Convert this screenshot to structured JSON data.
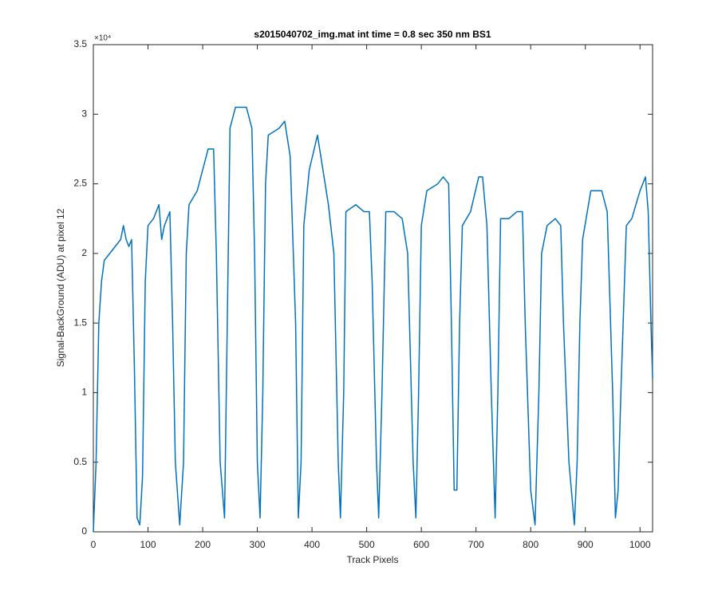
{
  "chart_data": {
    "type": "line",
    "title": "s2015040702_img.mat int time = 0.8 sec  350 nm BS1",
    "xlabel": "Track Pixels",
    "ylabel": "Signal-BackGround (ADU) at pixel 12",
    "y_exponent_label": "×10⁴",
    "xlim": [
      0,
      1023
    ],
    "xticks": [
      0,
      100,
      200,
      300,
      400,
      500,
      600,
      700,
      800,
      900,
      1000
    ],
    "ylim": [
      0,
      3.5
    ],
    "yticks": [
      0,
      0.5,
      1,
      1.5,
      2,
      2.5,
      3,
      3.5
    ],
    "series": [
      {
        "color": "#0072bd",
        "x": [
          0,
          5,
          10,
          15,
          20,
          30,
          40,
          50,
          55,
          60,
          65,
          70,
          75,
          80,
          85,
          90,
          95,
          100,
          110,
          120,
          125,
          130,
          140,
          145,
          150,
          158,
          165,
          170,
          175,
          190,
          200,
          210,
          220,
          225,
          232,
          240,
          245,
          250,
          260,
          280,
          290,
          295,
          300,
          305,
          310,
          315,
          320,
          340,
          350,
          360,
          370,
          375,
          380,
          385,
          395,
          410,
          420,
          430,
          440,
          448,
          452,
          458,
          462,
          480,
          495,
          505,
          510,
          518,
          522,
          528,
          535,
          550,
          565,
          575,
          585,
          590,
          595,
          600,
          610,
          630,
          640,
          650,
          655,
          660,
          665,
          670,
          675,
          690,
          705,
          712,
          720,
          728,
          735,
          740,
          745,
          760,
          775,
          785,
          790,
          800,
          808,
          815,
          820,
          830,
          845,
          855,
          860,
          870,
          880,
          885,
          890,
          895,
          910,
          930,
          940,
          950,
          955,
          960,
          965,
          975,
          985,
          1000,
          1010,
          1015,
          1020,
          1023
        ],
        "values": [
          0,
          0.5,
          1.5,
          1.8,
          1.95,
          2.0,
          2.05,
          2.1,
          2.2,
          2.1,
          2.05,
          2.1,
          1.2,
          0.1,
          0.05,
          0.4,
          1.8,
          2.2,
          2.25,
          2.35,
          2.1,
          2.2,
          2.3,
          1.5,
          0.5,
          0.05,
          0.5,
          2.0,
          2.35,
          2.45,
          2.6,
          2.75,
          2.75,
          2.0,
          0.5,
          0.1,
          1.5,
          2.9,
          3.05,
          3.05,
          2.9,
          2.0,
          0.5,
          0.1,
          1.0,
          2.5,
          2.85,
          2.9,
          2.95,
          2.7,
          1.5,
          0.1,
          0.5,
          2.2,
          2.6,
          2.85,
          2.6,
          2.35,
          2.0,
          0.5,
          0.1,
          1.0,
          2.3,
          2.35,
          2.3,
          2.3,
          1.8,
          0.5,
          0.1,
          1.0,
          2.3,
          2.3,
          2.25,
          2.0,
          0.5,
          0.1,
          1.0,
          2.2,
          2.45,
          2.5,
          2.55,
          2.5,
          1.5,
          0.3,
          0.3,
          1.5,
          2.2,
          2.3,
          2.55,
          2.55,
          2.2,
          1.0,
          0.1,
          1.0,
          2.25,
          2.25,
          2.3,
          2.3,
          1.5,
          0.3,
          0.05,
          1.0,
          2.0,
          2.2,
          2.25,
          2.2,
          1.5,
          0.5,
          0.05,
          0.5,
          1.5,
          2.1,
          2.45,
          2.45,
          2.3,
          1.0,
          0.1,
          0.3,
          1.0,
          2.2,
          2.25,
          2.45,
          2.55,
          2.3,
          1.5,
          1.1
        ]
      }
    ]
  }
}
